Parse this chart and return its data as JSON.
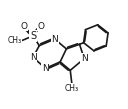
{
  "bg_color": "#ffffff",
  "line_color": "#1a1a1a",
  "line_width": 1.2,
  "font_size": 6.5,
  "fig_width": 1.28,
  "fig_height": 1.09,
  "dpi": 100,
  "xlim": [
    0.0,
    10.5
  ],
  "ylim": [
    2.5,
    10.0
  ]
}
